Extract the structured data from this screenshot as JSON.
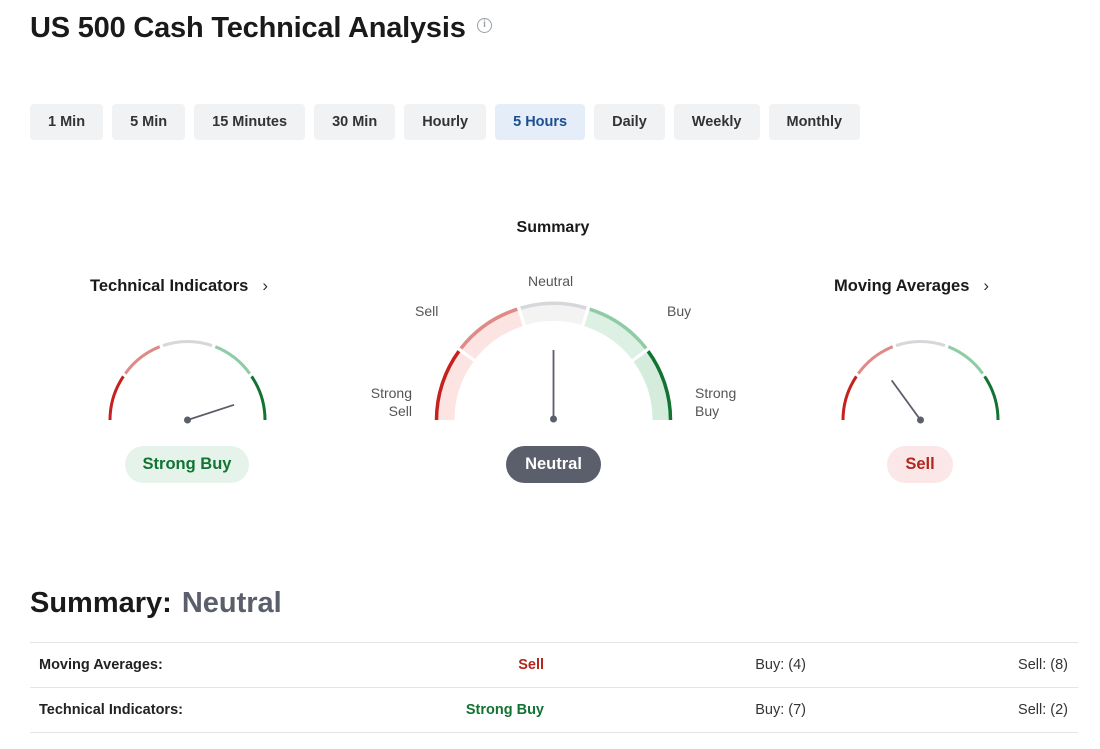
{
  "page": {
    "title": "US 500 Cash Technical Analysis"
  },
  "timeframes": {
    "items": [
      "1 Min",
      "5 Min",
      "15 Minutes",
      "30 Min",
      "Hourly",
      "5 Hours",
      "Daily",
      "Weekly",
      "Monthly"
    ],
    "selected": "5 Hours"
  },
  "summary_gauge": {
    "heading": "Summary",
    "labels": {
      "strong_sell": [
        "Strong",
        "Sell"
      ],
      "sell": "Sell",
      "neutral": "Neutral",
      "buy": "Buy",
      "strong_buy": [
        "Strong",
        "Buy"
      ]
    },
    "result": "Neutral",
    "needle_level": "neutral"
  },
  "technical_indicators_gauge": {
    "title": "Technical Indicators",
    "result": "Strong Buy",
    "needle_level": "strong-buy"
  },
  "moving_averages_gauge": {
    "title": "Moving Averages",
    "result": "Sell",
    "needle_level": "sell"
  },
  "summary_table": {
    "heading_label": "Summary:",
    "heading_value": "Neutral",
    "rows": [
      {
        "name": "Moving Averages:",
        "signal": "Sell",
        "buy": "Buy: (4)",
        "sell": "Sell: (8)"
      },
      {
        "name": "Technical Indicators:",
        "signal": "Strong Buy",
        "buy": "Buy: (7)",
        "sell": "Sell: (2)"
      }
    ]
  },
  "colors": {
    "strong_sell": "#c5221f",
    "sell": "#de8b87",
    "neutral": "#d6d7da",
    "buy": "#8fcca6",
    "strong_buy": "#137333",
    "active_tab_bg": "#e4edf8",
    "active_tab_text": "#1a4f91"
  },
  "icons": {
    "info": "info-icon",
    "chevron": "chevron-right-icon"
  }
}
